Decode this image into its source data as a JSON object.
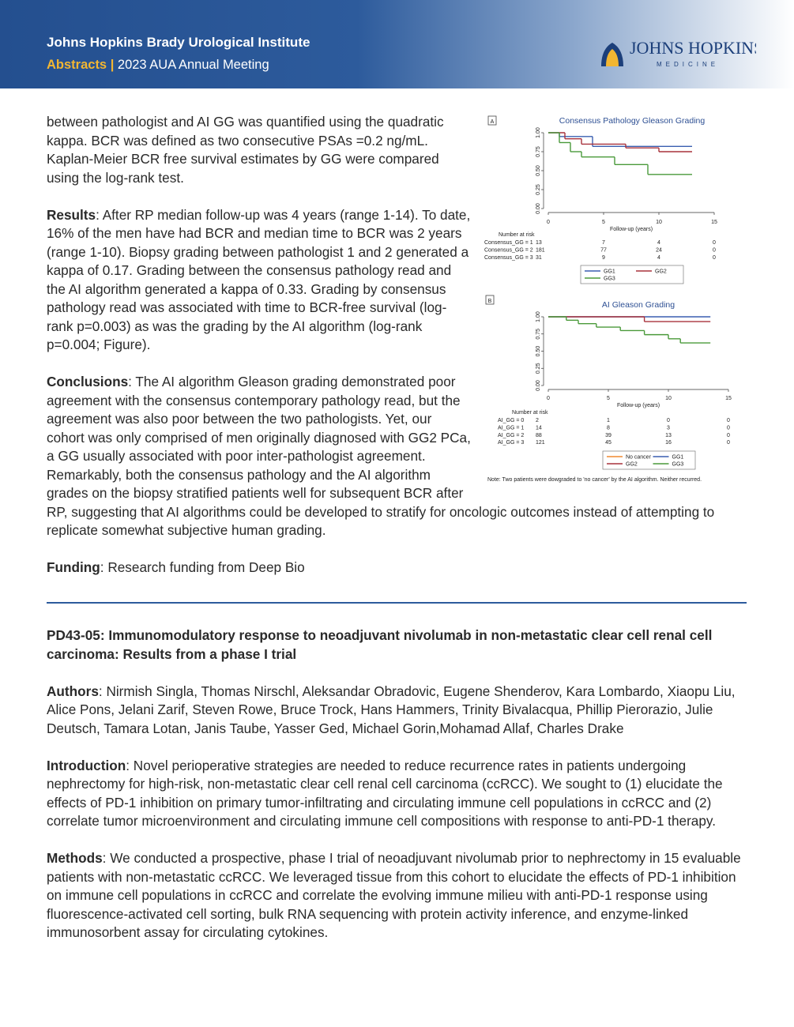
{
  "header": {
    "title": "Johns Hopkins Brady Urological Institute",
    "label": "Abstracts |",
    "subtitle": "2023 AUA Annual Meeting",
    "logo": {
      "name": "JOHNS HOPKINS",
      "sub": "MEDICINE"
    }
  },
  "abstract1": {
    "intro": "between pathologist and AI GG was quantified using the quadratic kappa. BCR was defined as two consecutive PSAs =0.2 ng/mL. Kaplan-Meier BCR free survival estimates by GG were compared using the log-rank test.",
    "results": {
      "label": "Results",
      "text": ": After RP median follow-up was 4 years (range 1-14). To date, 16% of the men have had BCR and median time to BCR was 2 years (range 1-10). Biopsy grading between pathologist 1 and 2 generated a kappa of 0.17. Grading between the consensus pathology read and the AI algorithm generated a kappa of 0.33. Grading by consensus pathology read was associated with time to BCR-free survival (log-rank p=0.003) as was the grading by the AI algorithm (log-rank p=0.004; Figure)."
    },
    "conclusions": {
      "label": "Conclusions",
      "text": ": The AI algorithm Gleason grading demonstrated poor agreement with the consensus contemporary pathology read, but the agreement was also poor between the two pathologists. Yet, our cohort was only comprised of men originally diagnosed with GG2 PCa, a GG usually associated with poor inter-pathologist agreement. Remarkably, both the consensus pathology and the AI algorithm grades on the biopsy stratified patients well for subsequent BCR after RP, suggesting that AI algorithms could be developed to stratify for oncologic outcomes instead of attempting to replicate somewhat subjective human grading."
    },
    "funding": {
      "label": "Funding",
      "text": ": Research funding from Deep Bio"
    }
  },
  "figure": {
    "panels": [
      {
        "label": "A",
        "title": "Consensus Pathology Gleason Grading",
        "xlim": [
          0,
          15
        ],
        "ylim": [
          0,
          1
        ],
        "xticks": [
          0,
          5,
          10,
          15
        ],
        "yticks": [
          {
            "value": 0,
            "label": "0.00"
          },
          {
            "value": 0.25,
            "label": "0.25"
          },
          {
            "value": 0.5,
            "label": "0.50"
          },
          {
            "value": 0.75,
            "label": "0.75"
          },
          {
            "value": 1,
            "label": "1.00"
          }
        ],
        "xlabel": "Follow-up (years)",
        "risk_title": "Number at risk",
        "risk_rows": [
          {
            "label": "Consensus_GG = 1",
            "counts": [
              13,
              7,
              4,
              0
            ]
          },
          {
            "label": "Consensus_GG = 2",
            "counts": [
              181,
              77,
              24,
              0
            ]
          },
          {
            "label": "Consensus_GG = 3",
            "counts": [
              31,
              9,
              4,
              0
            ]
          }
        ],
        "series": [
          {
            "name": "GG1",
            "color": "#3a5fb0",
            "x": [
              0,
              1,
              4,
              13
            ],
            "y": [
              1,
              0.95,
              0.82,
              0.82
            ]
          },
          {
            "name": "GG2",
            "color": "#a8323c",
            "x": [
              0,
              1.5,
              3,
              7,
              10,
              13
            ],
            "y": [
              1,
              0.92,
              0.85,
              0.8,
              0.75,
              0.75
            ]
          },
          {
            "name": "GG3",
            "color": "#4a9a3a",
            "x": [
              0,
              1,
              2,
              3,
              6,
              9,
              13
            ],
            "y": [
              1,
              0.87,
              0.75,
              0.68,
              0.58,
              0.45,
              0.45
            ]
          }
        ]
      },
      {
        "label": "B",
        "title": "AI Gleason Grading",
        "xlim": [
          0,
          15
        ],
        "ylim": [
          0,
          1
        ],
        "xticks": [
          0,
          5,
          10,
          15
        ],
        "yticks": [
          {
            "value": 0,
            "label": "0.00"
          },
          {
            "value": 0.25,
            "label": "0.25"
          },
          {
            "value": 0.5,
            "label": "0.50"
          },
          {
            "value": 0.75,
            "label": "0.75"
          },
          {
            "value": 1,
            "label": "1.00"
          }
        ],
        "xlabel": "Follow-up (years)",
        "risk_title": "Number at risk",
        "risk_rows": [
          {
            "label": "AI_GG = 0",
            "counts": [
              2,
              1,
              0,
              0
            ]
          },
          {
            "label": "AI_GG = 1",
            "counts": [
              14,
              8,
              3,
              0
            ]
          },
          {
            "label": "AI_GG = 2",
            "counts": [
              88,
              39,
              13,
              0
            ]
          },
          {
            "label": "AI_GG = 3",
            "counts": [
              121,
              45,
              16,
              0
            ]
          }
        ],
        "series": [
          {
            "name": "No cancer",
            "color": "#f08a30"
          },
          {
            "name": "GG1",
            "color": "#3a5fb0",
            "x": [
              0,
              13.5
            ],
            "y": [
              1,
              1
            ]
          },
          {
            "name": "GG2",
            "color": "#a8323c",
            "x": [
              0,
              8,
              13.5
            ],
            "y": [
              1,
              0.93,
              0.93
            ]
          },
          {
            "name": "GG3",
            "color": "#4a9a3a",
            "x": [
              0,
              1.5,
              2.5,
              4,
              6,
              8,
              10,
              11,
              13.5
            ],
            "y": [
              1,
              0.95,
              0.9,
              0.85,
              0.8,
              0.74,
              0.68,
              0.62,
              0.62
            ]
          }
        ],
        "note": "Note: Two patients were dowgraded to 'no cancer' by the AI algorithm. Neither recurred."
      }
    ]
  },
  "abstract2": {
    "title": "PD43-05: Immunomodulatory response to neoadjuvant nivolumab in non-metastatic clear cell renal cell carcinoma: Results from a phase I trial",
    "authors": {
      "label": "Authors",
      "text": ": Nirmish Singla, Thomas Nirschl, Aleksandar Obradovic, Eugene Shenderov, Kara Lombardo, Xiaopu Liu, Alice Pons, Jelani Zarif, Steven Rowe, Bruce Trock,  Hans Hammers, Trinity Bivalacqua, Phillip Pierorazio, Julie Deutsch, Tamara Lotan, Janis Taube, Yasser Ged, Michael Gorin,Mohamad Allaf, Charles Drake"
    },
    "introduction": {
      "label": "Introduction",
      "text": ": Novel perioperative strategies are needed to reduce recurrence rates in patients undergoing nephrectomy for high-risk, non-metastatic clear cell renal cell carcinoma (ccRCC). We sought to (1) elucidate the effects of PD-1 inhibition on primary tumor-infiltrating and circulating immune cell populations in ccRCC and (2) correlate tumor microenvironment and circulating immune cell compositions with response to anti-PD-1 therapy."
    },
    "methods": {
      "label": "Methods",
      "text": ": We conducted a prospective, phase I trial of neoadjuvant nivolumab prior to nephrectomy in 15 evaluable patients with non-metastatic ccRCC. We leveraged tissue from this cohort to elucidate the effects of PD-1 inhibition on immune cell populations in ccRCC and correlate the evolving immune milieu with anti-PD-1 response using fluorescence-activated cell sorting, bulk RNA sequencing with protein activity inference, and enzyme-linked immunosorbent assay for circulating cytokines."
    }
  }
}
